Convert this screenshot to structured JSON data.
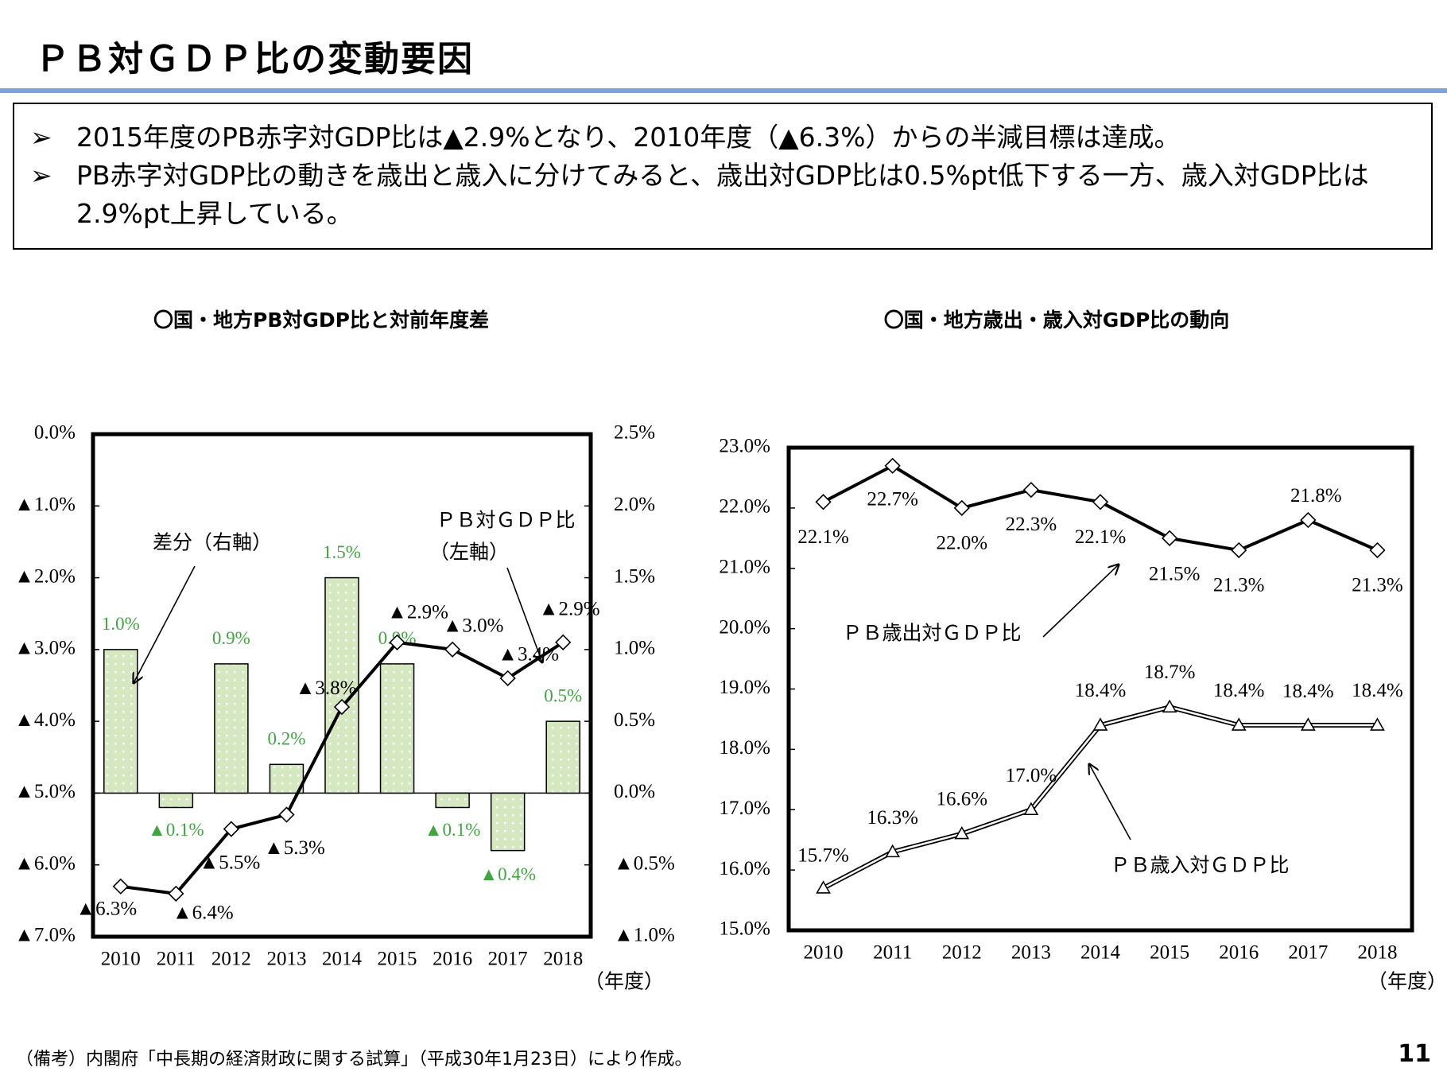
{
  "header": {
    "title": "ＰＢ対ＧＤＰ比の変動要因"
  },
  "summary": {
    "bullets": [
      "2015年度のPB赤字対GDP比は▲2.9%となり、2010年度（▲6.3%）からの半減目標は達成。",
      "PB赤字対GDP比の動きを歳出と歳入に分けてみると、歳出対GDP比は0.5%pt低下する一方、歳入対GDP比は2.9%pt上昇している。"
    ]
  },
  "chart_data": [
    {
      "type": "combo",
      "title": "〇国・地方PB対GDP比と対前年度差",
      "categories": [
        "2010",
        "2011",
        "2012",
        "2013",
        "2014",
        "2015",
        "2016",
        "2017",
        "2018"
      ],
      "xlabel": "（年度）",
      "ylim": [
        -7,
        0
      ],
      "yticks": [
        {
          "value": 0,
          "label": "0.0%"
        },
        {
          "value": -1,
          "label": "▲1.0%"
        },
        {
          "value": -2,
          "label": "▲2.0%"
        },
        {
          "value": -3,
          "label": "▲3.0%"
        },
        {
          "value": -4,
          "label": "▲4.0%"
        },
        {
          "value": -5,
          "label": "▲5.0%"
        },
        {
          "value": -6,
          "label": "▲6.0%"
        },
        {
          "value": -7,
          "label": "▲7.0%"
        }
      ],
      "y2lim": [
        -1,
        2.5
      ],
      "y2ticks": [
        {
          "value": 2.5,
          "label": "2.5%"
        },
        {
          "value": 2,
          "label": "2.0%"
        },
        {
          "value": 1.5,
          "label": "1.5%"
        },
        {
          "value": 1,
          "label": "1.0%"
        },
        {
          "value": 0.5,
          "label": "0.5%"
        },
        {
          "value": 0,
          "label": "0.0%"
        },
        {
          "value": -0.5,
          "label": "▲0.5%"
        },
        {
          "value": -1,
          "label": "▲1.0%"
        }
      ],
      "series": [
        {
          "name": "差分（右軸）",
          "type": "bar",
          "axis": "y2",
          "color": "#d5e8c0",
          "label_color": "#3fa63f",
          "values": [
            1.0,
            -0.1,
            0.9,
            0.2,
            1.5,
            0.9,
            -0.1,
            -0.4,
            0.5
          ],
          "value_labels": [
            "1.0%",
            "▲0.1%",
            "0.9%",
            "0.2%",
            "1.5%",
            "0.9%",
            "▲0.1%",
            "▲0.4%",
            "0.5%"
          ]
        },
        {
          "name": "ＰＢ対ＧＤＰ比",
          "name_note": "（左軸）",
          "type": "line",
          "marker": "diamond",
          "color": "#000000",
          "values": [
            -6.3,
            -6.4,
            -5.5,
            -5.3,
            -3.8,
            -2.9,
            -3.0,
            -3.4,
            -2.9
          ],
          "value_labels": [
            "▲6.3%",
            "▲6.4%",
            "▲5.5%",
            "▲5.3%",
            "▲3.8%",
            "▲2.9%",
            "▲3.0%",
            "▲3.4%",
            "▲2.9%"
          ]
        }
      ]
    },
    {
      "type": "line",
      "title": "〇国・地方歳出・歳入対GDP比の動向",
      "categories": [
        "2010",
        "2011",
        "2012",
        "2013",
        "2014",
        "2015",
        "2016",
        "2017",
        "2018"
      ],
      "xlabel": "（年度）",
      "ylim": [
        15,
        23
      ],
      "yticks": [
        {
          "value": 15,
          "label": "15.0%"
        },
        {
          "value": 16,
          "label": "16.0%"
        },
        {
          "value": 17,
          "label": "17.0%"
        },
        {
          "value": 18,
          "label": "18.0%"
        },
        {
          "value": 19,
          "label": "19.0%"
        },
        {
          "value": 20,
          "label": "20.0%"
        },
        {
          "value": 21,
          "label": "21.0%"
        },
        {
          "value": 22,
          "label": "22.0%"
        },
        {
          "value": 23,
          "label": "23.0%"
        }
      ],
      "series": [
        {
          "name": "ＰＢ歳出対ＧＤＰ比",
          "type": "line",
          "marker": "diamond",
          "color": "#000000",
          "values": [
            22.1,
            22.7,
            22.0,
            22.3,
            22.1,
            21.5,
            21.3,
            21.8,
            21.3
          ],
          "value_labels": [
            "22.1%",
            "22.7%",
            "22.0%",
            "22.3%",
            "22.1%",
            "21.5%",
            "21.3%",
            "21.8%",
            "21.3%"
          ]
        },
        {
          "name": "ＰＢ歳入対ＧＤＰ比",
          "type": "line",
          "marker": "triangle",
          "style": "double",
          "color": "#000000",
          "values": [
            15.7,
            16.3,
            16.6,
            17.0,
            18.4,
            18.7,
            18.4,
            18.4,
            18.4
          ],
          "value_labels": [
            "15.7%",
            "16.3%",
            "16.6%",
            "17.0%",
            "18.4%",
            "18.7%",
            "18.4%",
            "18.4%",
            "18.4%"
          ]
        }
      ]
    }
  ],
  "footer": {
    "note": "（備考）内閣府「中長期の経済財政に関する試算」（平成30年1月23日）により作成。",
    "page": 11
  }
}
